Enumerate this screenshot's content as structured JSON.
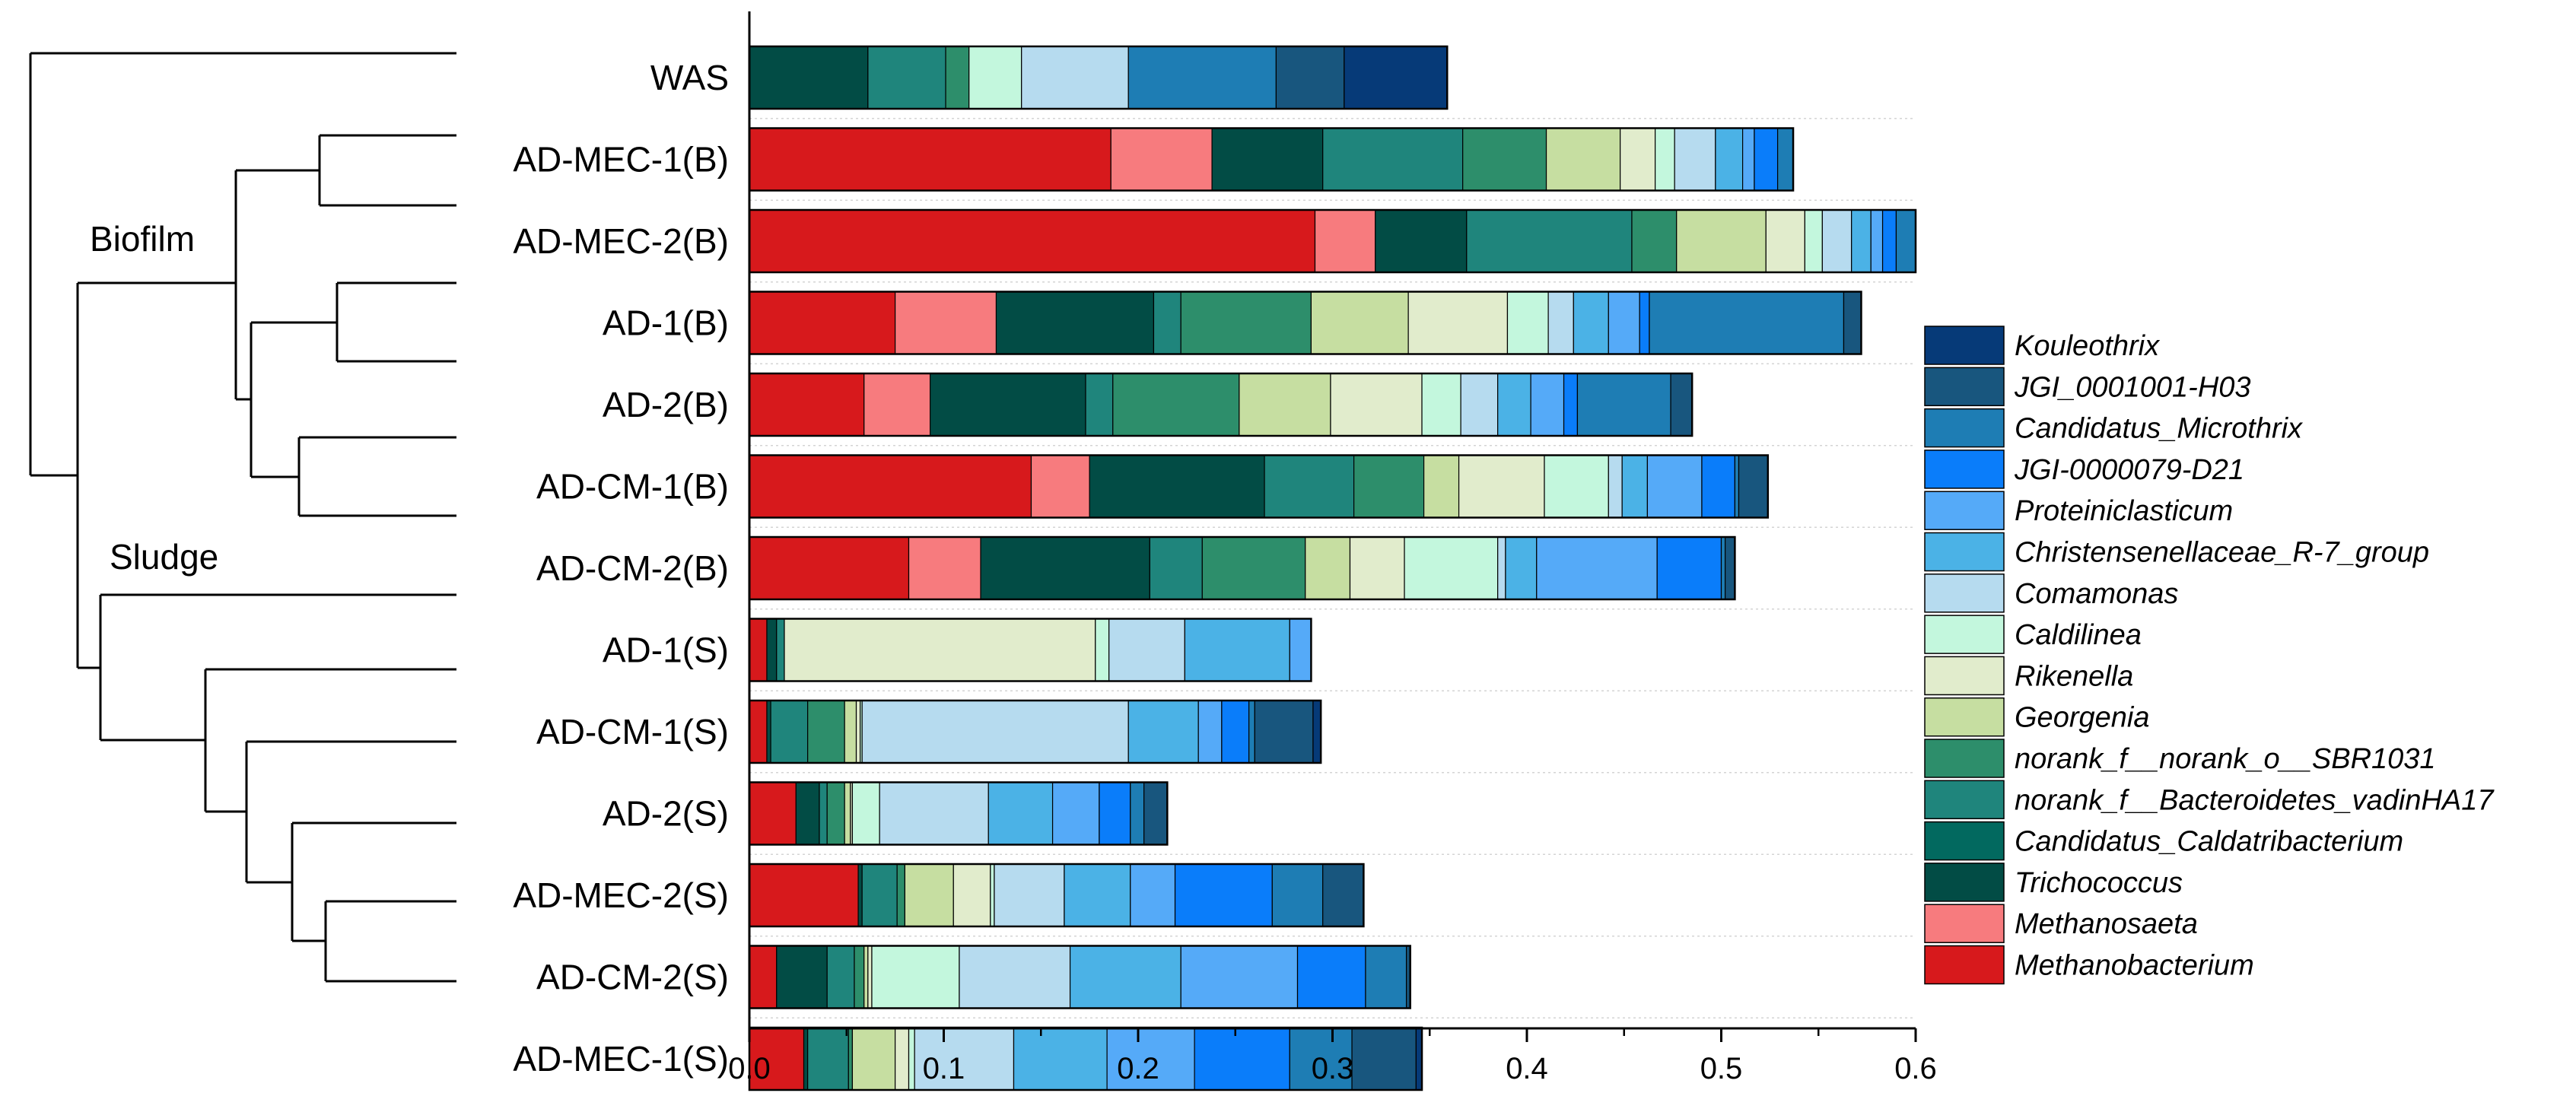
{
  "chart_data": {
    "type": "bar",
    "orientation": "horizontal",
    "stacked": true,
    "xlim": [
      0,
      0.6
    ],
    "x_ticks": [
      0.0,
      0.1,
      0.2,
      0.3,
      0.4,
      0.5,
      0.6
    ],
    "x_tick_labels": [
      "0.0",
      "0.1",
      "0.2",
      "0.3",
      "0.4",
      "0.5",
      "0.6"
    ],
    "grid": "horizontal dotted",
    "legend_placement": "right",
    "groups": [
      {
        "label": "Biofilm"
      },
      {
        "label": "Sludge"
      }
    ],
    "taxa": [
      {
        "name": "Methanobacterium",
        "color": "#d7191c"
      },
      {
        "name": "Methanosaeta",
        "color": "#f77b7e"
      },
      {
        "name": "Trichococcus",
        "color": "#024c45"
      },
      {
        "name": "Candidatus_Caldatribacterium",
        "color": "#02695f"
      },
      {
        "name": "norank_f__Bacteroidetes_vadinHA17",
        "color": "#1f857c"
      },
      {
        "name": "norank_f__norank_o__SBR1031",
        "color": "#2d8e6b"
      },
      {
        "name": "Georgenia",
        "color": "#c6dea1"
      },
      {
        "name": "Rikenella",
        "color": "#e1eccc"
      },
      {
        "name": "Caldilinea",
        "color": "#c3f7dd"
      },
      {
        "name": "Comamonas",
        "color": "#b6dbef"
      },
      {
        "name": "Christensenellaceae_R-7_group",
        "color": "#4bb2e6"
      },
      {
        "name": "Proteiniclasticum",
        "color": "#55aaf8"
      },
      {
        "name": "JGI-0000079-D21",
        "color": "#0a7dfa"
      },
      {
        "name": "Candidatus_Microthrix",
        "color": "#1e7db4"
      },
      {
        "name": "JGI_0001001-H03",
        "color": "#18567e"
      },
      {
        "name": "Kouleothrix",
        "color": "#063a78"
      }
    ],
    "samples": [
      {
        "name": "WAS",
        "values": [
          0.0,
          0.0,
          0.061,
          0.0,
          0.04,
          0.012,
          0.0,
          0.0,
          0.027,
          0.055,
          0.0,
          0.0,
          0.0,
          0.076,
          0.035,
          0.053
        ]
      },
      {
        "name": "AD-MEC-1(B)",
        "values": [
          0.186,
          0.052,
          0.057,
          0.0,
          0.072,
          0.043,
          0.038,
          0.018,
          0.01,
          0.021,
          0.014,
          0.006,
          0.012,
          0.008,
          0.0,
          0.0
        ]
      },
      {
        "name": "AD-MEC-2(B)",
        "values": [
          0.291,
          0.031,
          0.047,
          0.0,
          0.085,
          0.023,
          0.046,
          0.02,
          0.009,
          0.015,
          0.01,
          0.006,
          0.007,
          0.01,
          0.0,
          0.0
        ]
      },
      {
        "name": "AD-1(B)",
        "values": [
          0.075,
          0.052,
          0.081,
          0.0,
          0.014,
          0.067,
          0.05,
          0.051,
          0.021,
          0.013,
          0.018,
          0.016,
          0.005,
          0.1,
          0.009,
          0.0
        ]
      },
      {
        "name": "AD-2(B)",
        "values": [
          0.059,
          0.034,
          0.08,
          0.0,
          0.014,
          0.065,
          0.047,
          0.047,
          0.02,
          0.019,
          0.017,
          0.017,
          0.007,
          0.048,
          0.011,
          0.0
        ]
      },
      {
        "name": "AD-CM-1(B)",
        "values": [
          0.145,
          0.03,
          0.09,
          0.0,
          0.046,
          0.036,
          0.018,
          0.044,
          0.033,
          0.007,
          0.013,
          0.028,
          0.017,
          0.002,
          0.015,
          0.0
        ]
      },
      {
        "name": "AD-CM-2(B)",
        "values": [
          0.082,
          0.037,
          0.087,
          0.0,
          0.027,
          0.053,
          0.023,
          0.028,
          0.048,
          0.004,
          0.016,
          0.062,
          0.033,
          0.002,
          0.005,
          0.0
        ]
      },
      {
        "name": "AD-1(S)",
        "values": [
          0.009,
          0.0,
          0.005,
          0.0,
          0.004,
          0.0,
          0.0,
          0.16,
          0.007,
          0.039,
          0.054,
          0.011,
          0.0,
          0.0,
          0.0,
          0.0
        ]
      },
      {
        "name": "AD-CM-1(S)",
        "values": [
          0.009,
          0.0,
          0.002,
          0.0,
          0.019,
          0.019,
          0.006,
          0.002,
          0.001,
          0.137,
          0.036,
          0.012,
          0.014,
          0.003,
          0.03,
          0.004
        ]
      },
      {
        "name": "AD-2(S)",
        "values": [
          0.024,
          0.0,
          0.012,
          0.0,
          0.004,
          0.009,
          0.003,
          0.001,
          0.014,
          0.056,
          0.033,
          0.024,
          0.016,
          0.007,
          0.012,
          0.0
        ]
      },
      {
        "name": "AD-MEC-2(S)",
        "values": [
          0.056,
          0.0,
          0.002,
          0.0,
          0.018,
          0.004,
          0.025,
          0.019,
          0.002,
          0.036,
          0.034,
          0.023,
          0.05,
          0.026,
          0.021,
          0.0
        ]
      },
      {
        "name": "AD-CM-2(S)",
        "values": [
          0.014,
          0.0,
          0.026,
          0.0,
          0.014,
          0.005,
          0.002,
          0.002,
          0.045,
          0.057,
          0.057,
          0.06,
          0.035,
          0.021,
          0.002,
          0.0
        ]
      },
      {
        "name": "AD-MEC-1(S)",
        "values": [
          0.028,
          0.0,
          0.002,
          0.0,
          0.021,
          0.002,
          0.022,
          0.007,
          0.003,
          0.051,
          0.048,
          0.045,
          0.049,
          0.032,
          0.033,
          0.003
        ]
      }
    ]
  }
}
